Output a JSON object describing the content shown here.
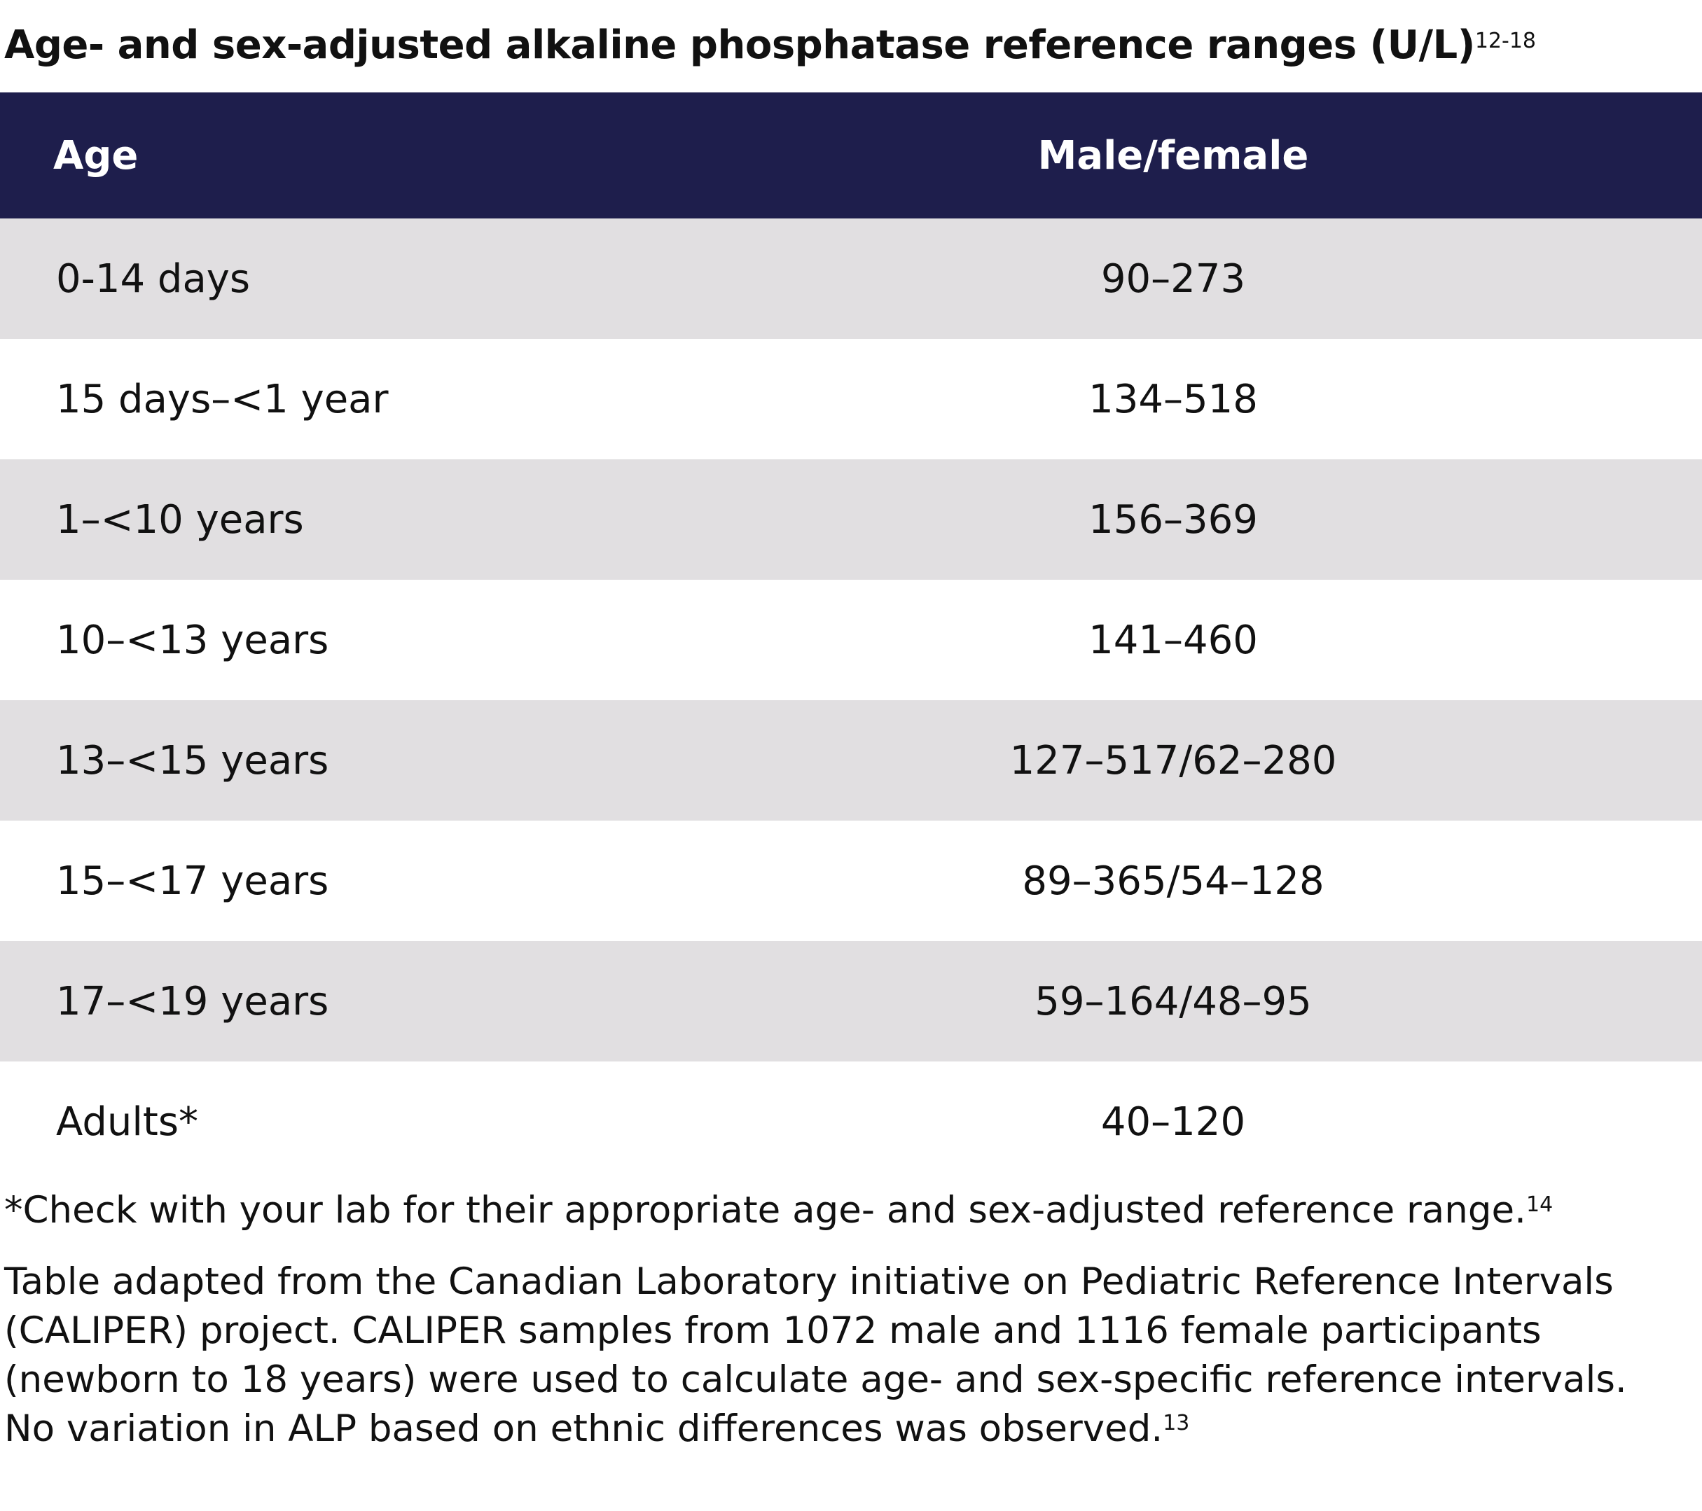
{
  "title": {
    "text": "Age- and sex-adjusted alkaline phosphatase reference ranges (U/L)",
    "superscript": "12-18"
  },
  "table": {
    "headers": {
      "age": "Age",
      "value": "Male/female"
    },
    "rows": [
      {
        "age": "0-14 days",
        "value": "90–273"
      },
      {
        "age": "15 days–<1 year",
        "value": "134–518"
      },
      {
        "age": "1–<10 years",
        "value": "156–369"
      },
      {
        "age": "10–<13 years",
        "value": "141–460"
      },
      {
        "age": "13–<15 years",
        "value": "127–517/62–280"
      },
      {
        "age": "15–<17 years",
        "value": "89–365/54–128"
      },
      {
        "age": "17–<19 years",
        "value": "59–164/48–95"
      },
      {
        "age": "Adults*",
        "value": "40–120"
      }
    ]
  },
  "footnote": {
    "text": "*Check with your lab for their appropriate age- and sex-adjusted reference range.",
    "superscript": "14"
  },
  "source": {
    "text": "Table adapted from the Canadian Laboratory initiative on Pediatric Reference Intervals (CALIPER) project. CALIPER samples from 1072 male and 1116 female participants (newborn to 18 years) were used to calculate age- and sex-specific reference intervals. No variation in ALP based on ethnic differences was observed.",
    "superscript": "13"
  },
  "colors": {
    "header_bg": "#1e1e4c",
    "header_text": "#ffffff",
    "shaded_row": "#e1dfe1",
    "plain_row": "#ffffff"
  }
}
